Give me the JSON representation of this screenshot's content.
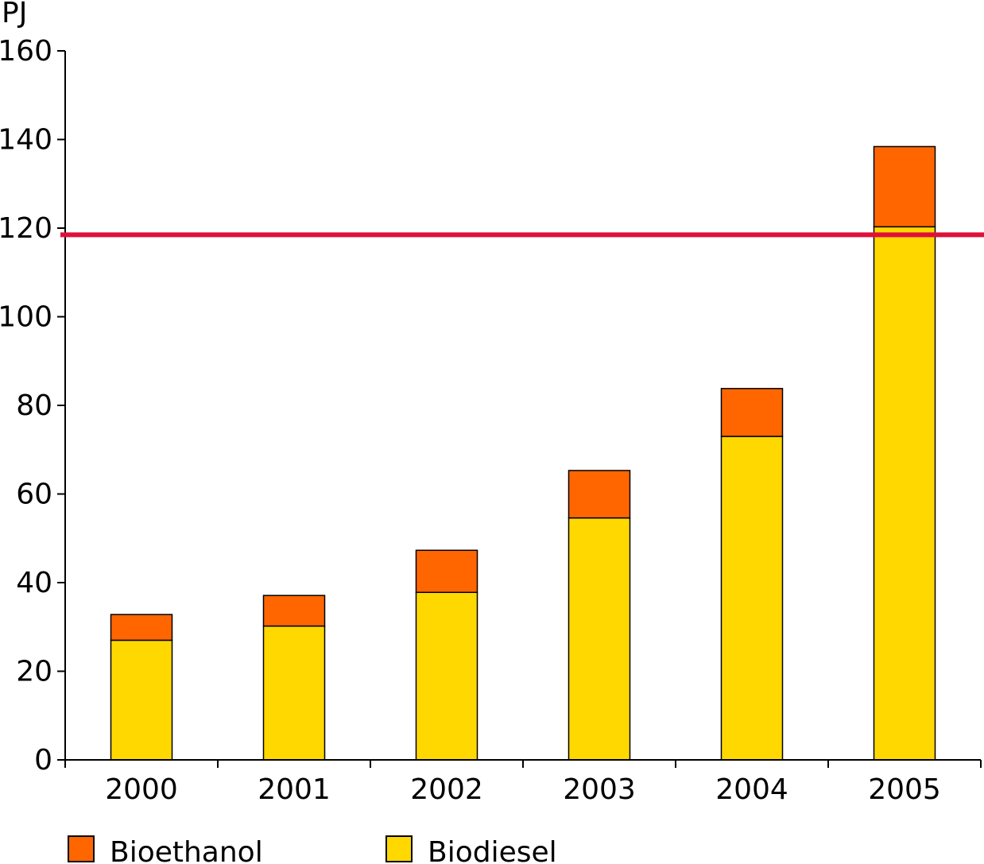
{
  "chart_data": {
    "type": "bar",
    "stacked": true,
    "ylabel": "PJ",
    "ylim": [
      0,
      160
    ],
    "yticks": [
      0,
      20,
      40,
      60,
      80,
      100,
      120,
      140,
      160
    ],
    "categories": [
      "2000",
      "2001",
      "2002",
      "2003",
      "2004",
      "2005"
    ],
    "series": [
      {
        "name": "Biodiesel",
        "color": "#FFD800",
        "values": [
          27,
          30.2,
          37.8,
          54.6,
          73.0,
          120.3
        ]
      },
      {
        "name": "Bioethanol",
        "color": "#FF6600",
        "values": [
          5.8,
          6.9,
          9.5,
          10.7,
          10.8,
          18.1
        ]
      }
    ],
    "reference_line": {
      "value": 118.5,
      "color": "#E0103A"
    },
    "legend": {
      "placement": "bottom",
      "order": [
        "Bioethanol",
        "Biodiesel"
      ]
    },
    "grid": false
  }
}
